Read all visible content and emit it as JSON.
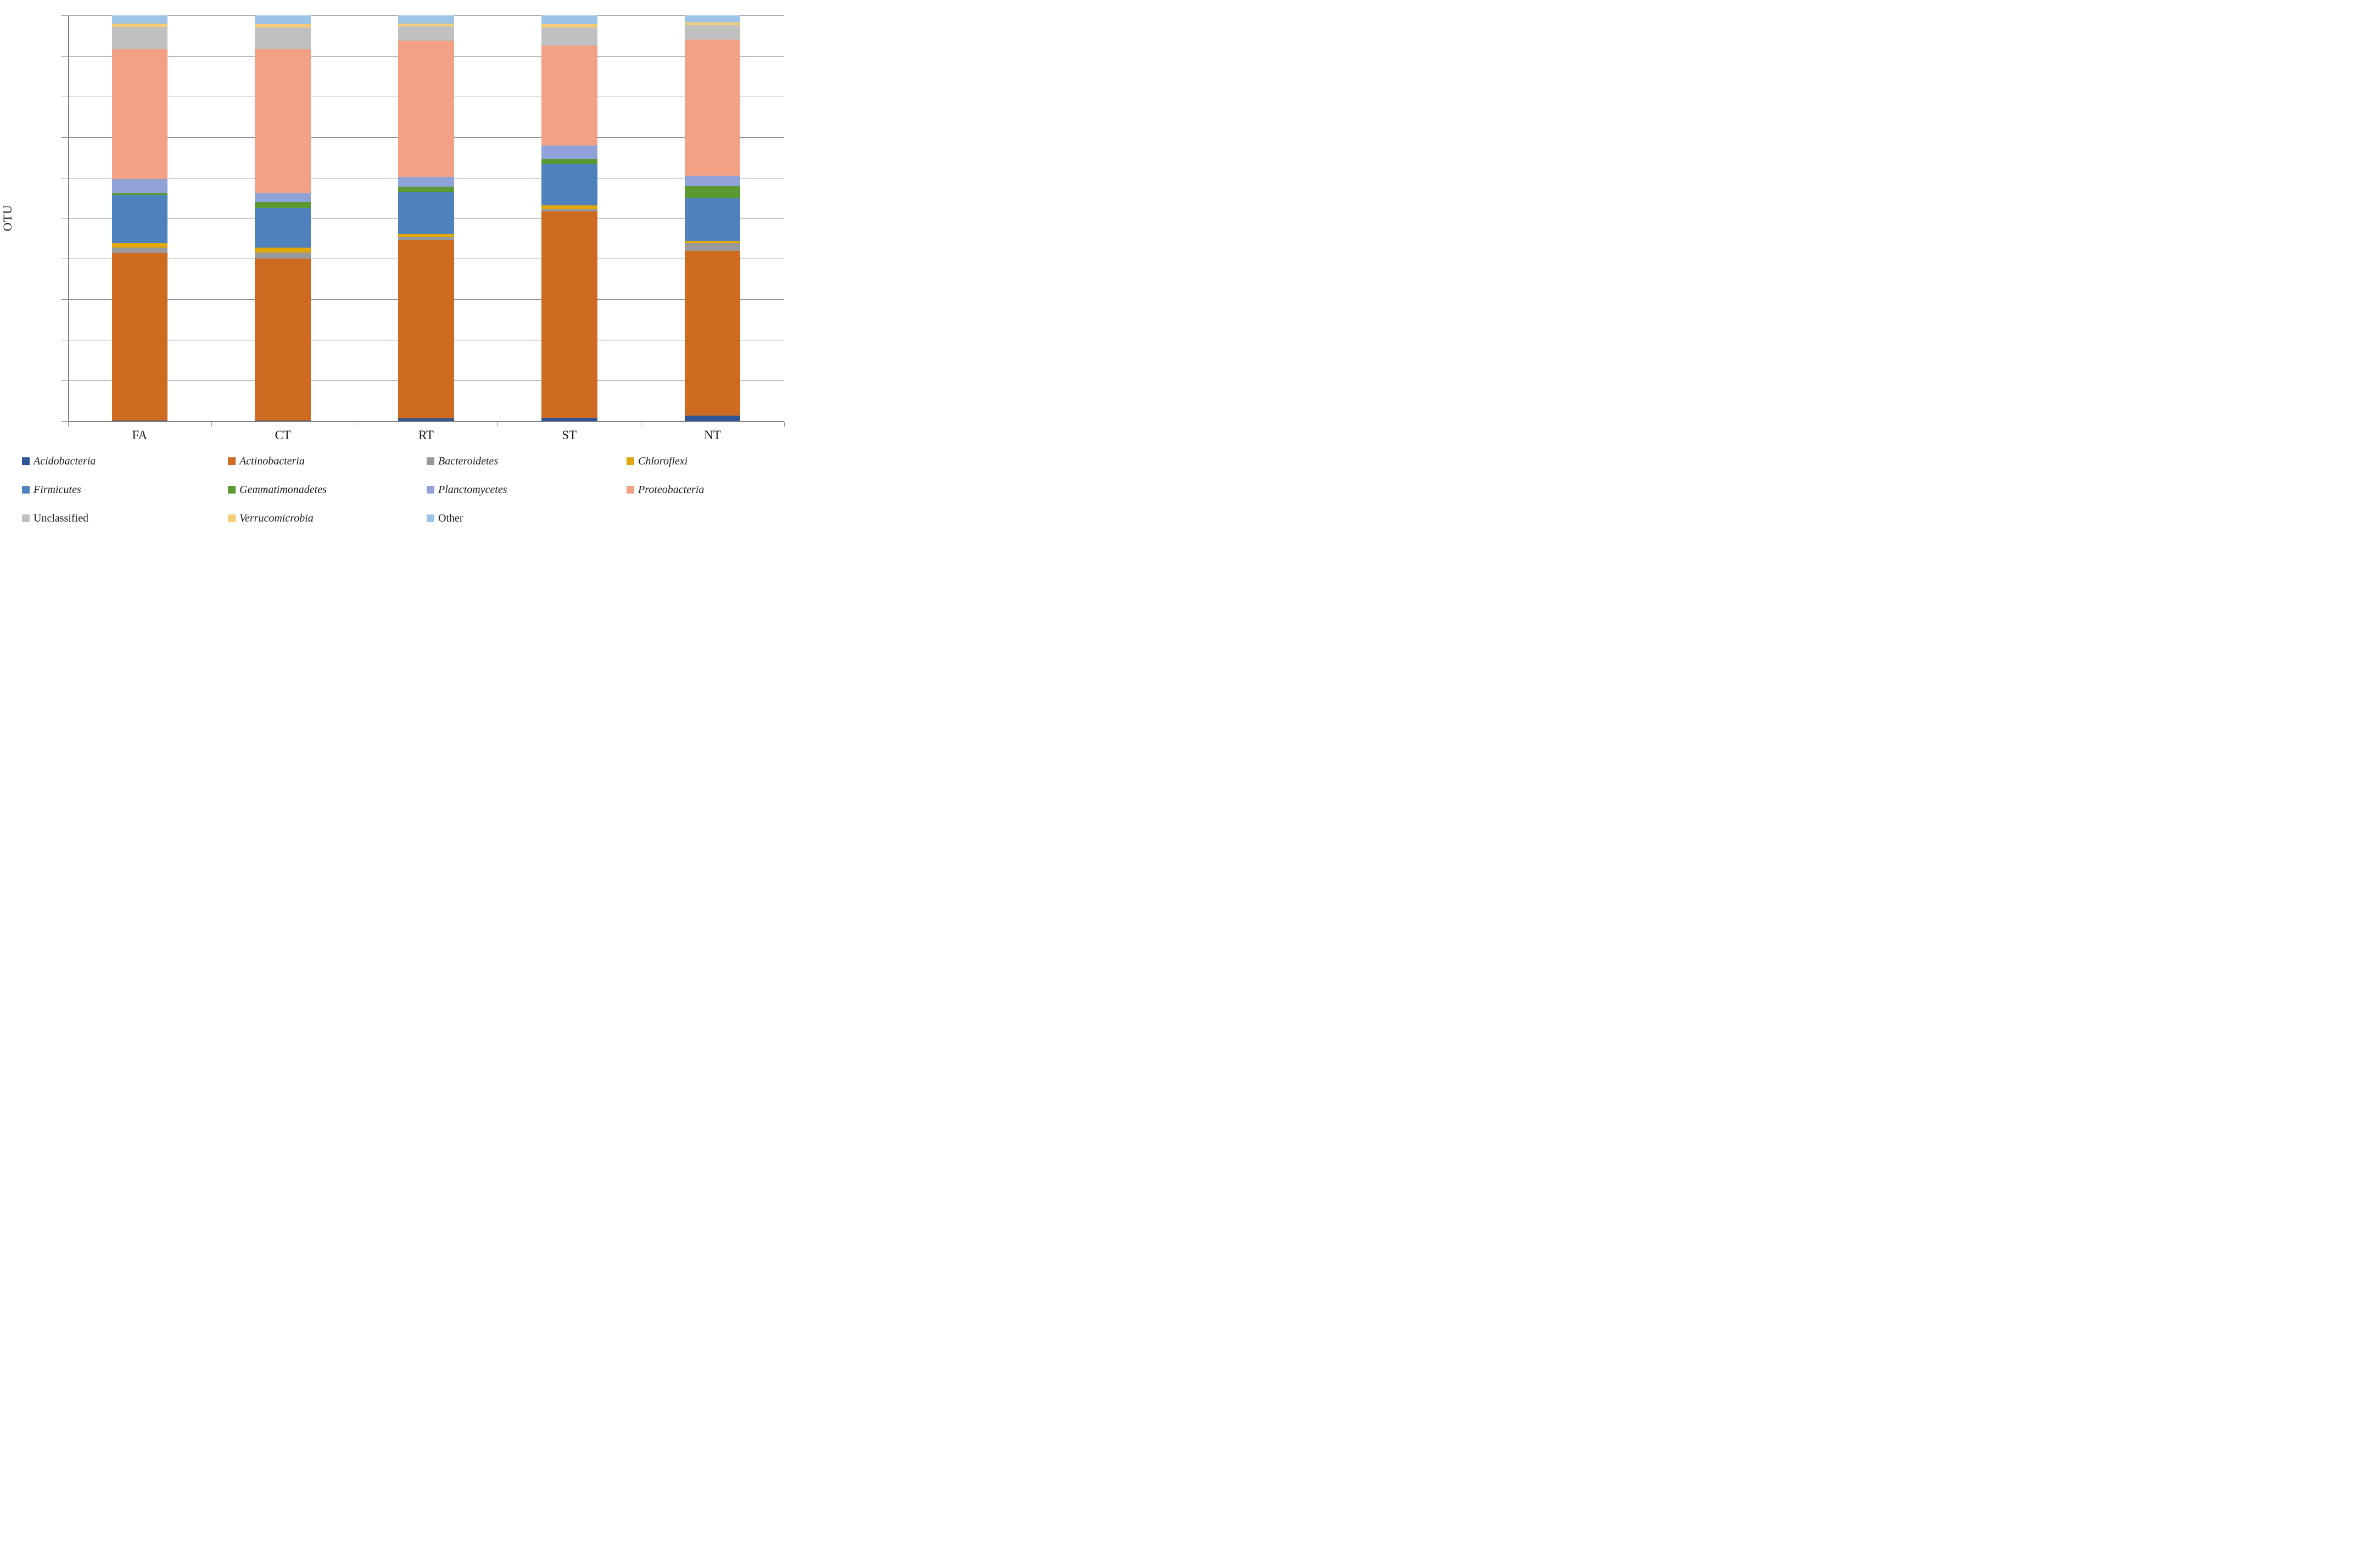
{
  "chart_data": {
    "type": "bar",
    "stacked": true,
    "percent_stacked": true,
    "title": "",
    "ylabel": "OTU",
    "xlabel": "",
    "ylim": [
      0,
      100
    ],
    "grid": "horizontal",
    "legend_position": "bottom",
    "y_ticks": [
      "0%",
      "10%",
      "20%",
      "30%",
      "40%",
      "50%",
      "60%",
      "70%",
      "80%",
      "90%",
      "100%"
    ],
    "categories": [
      "FA",
      "CT",
      "RT",
      "ST",
      "NT"
    ],
    "series": [
      {
        "name": "Acidobacteria",
        "color": "#2f5597",
        "italic": true,
        "values": [
          0.2,
          0.2,
          0.7,
          0.8,
          1.3
        ]
      },
      {
        "name": "Actinobacteria",
        "color": "#cf6a21",
        "italic": true,
        "values": [
          41.2,
          39.8,
          43.9,
          50.9,
          40.6
        ]
      },
      {
        "name": "Bacteroidetes",
        "color": "#999999",
        "italic": true,
        "values": [
          1.3,
          1.6,
          0.8,
          0.5,
          2.0
        ]
      },
      {
        "name": "Chloroflexi",
        "color": "#e0a80c",
        "italic": true,
        "values": [
          1.2,
          1.2,
          0.7,
          1.0,
          0.5
        ]
      },
      {
        "name": "Firmicutes",
        "color": "#4d82bc",
        "italic": true,
        "values": [
          11.9,
          9.7,
          10.3,
          10.2,
          10.5
        ]
      },
      {
        "name": "Gemmatimonadetes",
        "color": "#5b9a32",
        "italic": true,
        "values": [
          0.4,
          1.5,
          1.4,
          1.2,
          3.0
        ]
      },
      {
        "name": "Planctomycetes",
        "color": "#8fa3d8",
        "italic": true,
        "values": [
          3.5,
          2.1,
          2.4,
          3.4,
          2.6
        ]
      },
      {
        "name": "Proteobacteria",
        "color": "#f2a184",
        "italic": true,
        "values": [
          32.0,
          35.7,
          33.6,
          24.6,
          33.6
        ]
      },
      {
        "name": "Unclassified",
        "color": "#c0c0c0",
        "italic": false,
        "values": [
          5.5,
          5.3,
          3.5,
          4.5,
          3.5
        ]
      },
      {
        "name": "Verrucomicrobia",
        "color": "#f6cc76",
        "italic": true,
        "values": [
          0.8,
          0.7,
          0.7,
          0.7,
          0.7
        ]
      },
      {
        "name": "Other",
        "color": "#9dc3e6",
        "italic": false,
        "values": [
          2.0,
          2.2,
          2.0,
          2.2,
          1.7
        ]
      }
    ]
  }
}
